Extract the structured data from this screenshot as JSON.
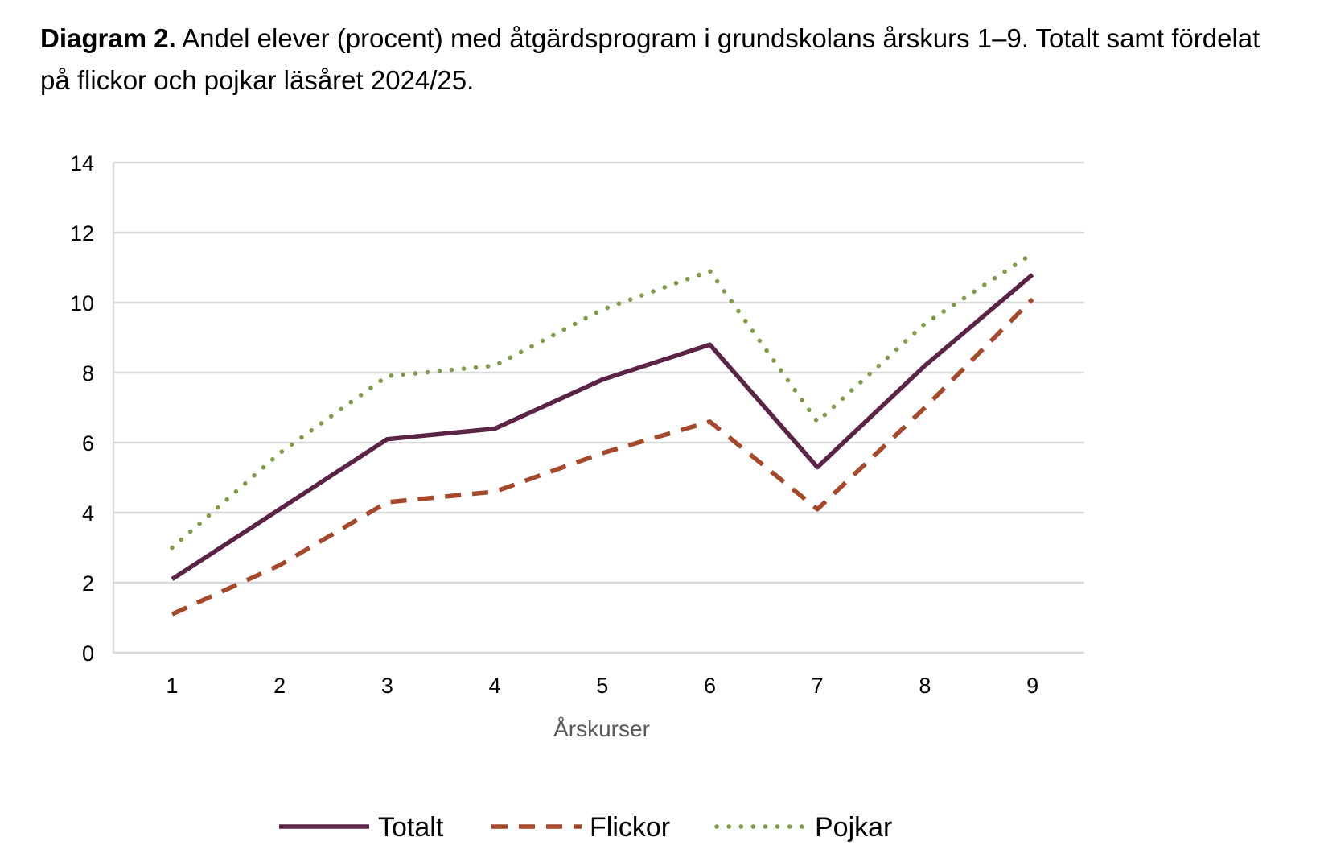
{
  "title": {
    "prefix": "Diagram 2.",
    "text": "Andel elever (procent) med åtgärdsprogram i grundskolans årskurs 1–9. Totalt samt fördelat på flickor och pojkar läsåret 2024/25."
  },
  "chart_data": {
    "type": "line",
    "xlabel": "Årskurser",
    "ylabel": "",
    "x": [
      "1",
      "2",
      "3",
      "4",
      "5",
      "6",
      "7",
      "8",
      "9"
    ],
    "ylim": [
      0,
      14
    ],
    "yticks": [
      0,
      2,
      4,
      6,
      8,
      10,
      12,
      14
    ],
    "grid": true,
    "legend_position": "bottom",
    "series": [
      {
        "name": "Totalt",
        "color": "#5b2447",
        "style": "solid",
        "values": [
          2.1,
          4.1,
          6.1,
          6.4,
          7.8,
          8.8,
          5.3,
          8.2,
          10.8
        ]
      },
      {
        "name": "Flickor",
        "color": "#a5482b",
        "style": "dashed",
        "values": [
          1.1,
          2.5,
          4.3,
          4.6,
          5.7,
          6.6,
          4.1,
          7.0,
          10.1
        ]
      },
      {
        "name": "Pojkar",
        "color": "#7f9b49",
        "style": "dotted",
        "values": [
          3.0,
          5.7,
          7.9,
          8.2,
          9.8,
          10.9,
          6.6,
          9.4,
          11.4
        ]
      }
    ]
  }
}
